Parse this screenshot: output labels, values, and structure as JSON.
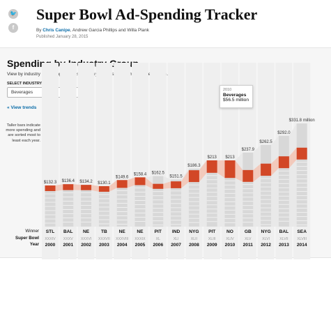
{
  "share": {
    "twitter_icon": "twitter-icon",
    "facebook_icon": "facebook-icon",
    "twitter_glyph": "🐦",
    "facebook_glyph": "f"
  },
  "header": {
    "title": "Super Bowl Ad-Spending Tracker",
    "byline_prefix": "By ",
    "byline_link": "Chris Canipe",
    "byline_rest": ", Andrew Garcia Phillips and Willa Plank",
    "published": "Published January 28, 2015"
  },
  "section": {
    "title": "Spending by Industry Group",
    "subtitle": "View by industry and company, or select any bar to see a complete breakdown.",
    "select_label": "SELECT INDUSTRY:",
    "select_value": "Beverages",
    "view_trends": "« View trends",
    "note": "Taller bars indicate more spending and are sorted most to least each year."
  },
  "tooltip": {
    "year": "2010",
    "industry": "Beverages",
    "value": "$56.5 million"
  },
  "row_labels": {
    "winner": "Winner",
    "super_bowl": "Super Bowl",
    "year": "Year"
  },
  "colors": {
    "highlight": "#d24726",
    "highlight_band": "#f2c2b2",
    "bar": "#d8d8d8",
    "band": "#e9e9e9",
    "column": "#efefef"
  },
  "chart_data": {
    "type": "bar",
    "highlighted_industry": "Beverages",
    "categories": [
      "2000",
      "2001",
      "2002",
      "2003",
      "2004",
      "2005",
      "2006",
      "2007",
      "2008",
      "2009",
      "2010",
      "2011",
      "2012",
      "2013",
      "2014"
    ],
    "winners": [
      "STL",
      "BAL",
      "NE",
      "TB",
      "NE",
      "NE",
      "PIT",
      "IND",
      "NYG",
      "PIT",
      "NO",
      "GB",
      "NYG",
      "BAL",
      "SEA"
    ],
    "super_bowls": [
      "XXXIV",
      "XXXV",
      "XXXVI",
      "XXXVII",
      "XXXVIII",
      "XXXIX",
      "XL",
      "XLI",
      "XLII",
      "XLIII",
      "XLIV",
      "XLV",
      "XLVI",
      "XLVII",
      "XLVIII"
    ],
    "total_labels": [
      "$132.3",
      "$136.4",
      "$134.2",
      "$130.1",
      "$149.6",
      "$158.4",
      "$162.5",
      "$151.5",
      "$186.3",
      "$213",
      "$213",
      "$237.9",
      "$262.5",
      "$292.0",
      "$331.8 million"
    ],
    "totals": [
      132.3,
      136.4,
      134.2,
      130.1,
      149.6,
      158.4,
      162.5,
      151.5,
      186.3,
      213,
      213,
      237.9,
      262.5,
      292.0,
      331.8
    ],
    "highlight_segment": {
      "name": "Beverages",
      "offset_above": [
        0,
        0,
        0,
        0,
        0,
        0,
        25,
        6,
        5,
        0,
        0,
        56,
        60,
        66,
        78
      ],
      "values": [
        18,
        19,
        17,
        18,
        25,
        25,
        16,
        22,
        38,
        40,
        56.5,
        38,
        39,
        38,
        38
      ]
    }
  }
}
